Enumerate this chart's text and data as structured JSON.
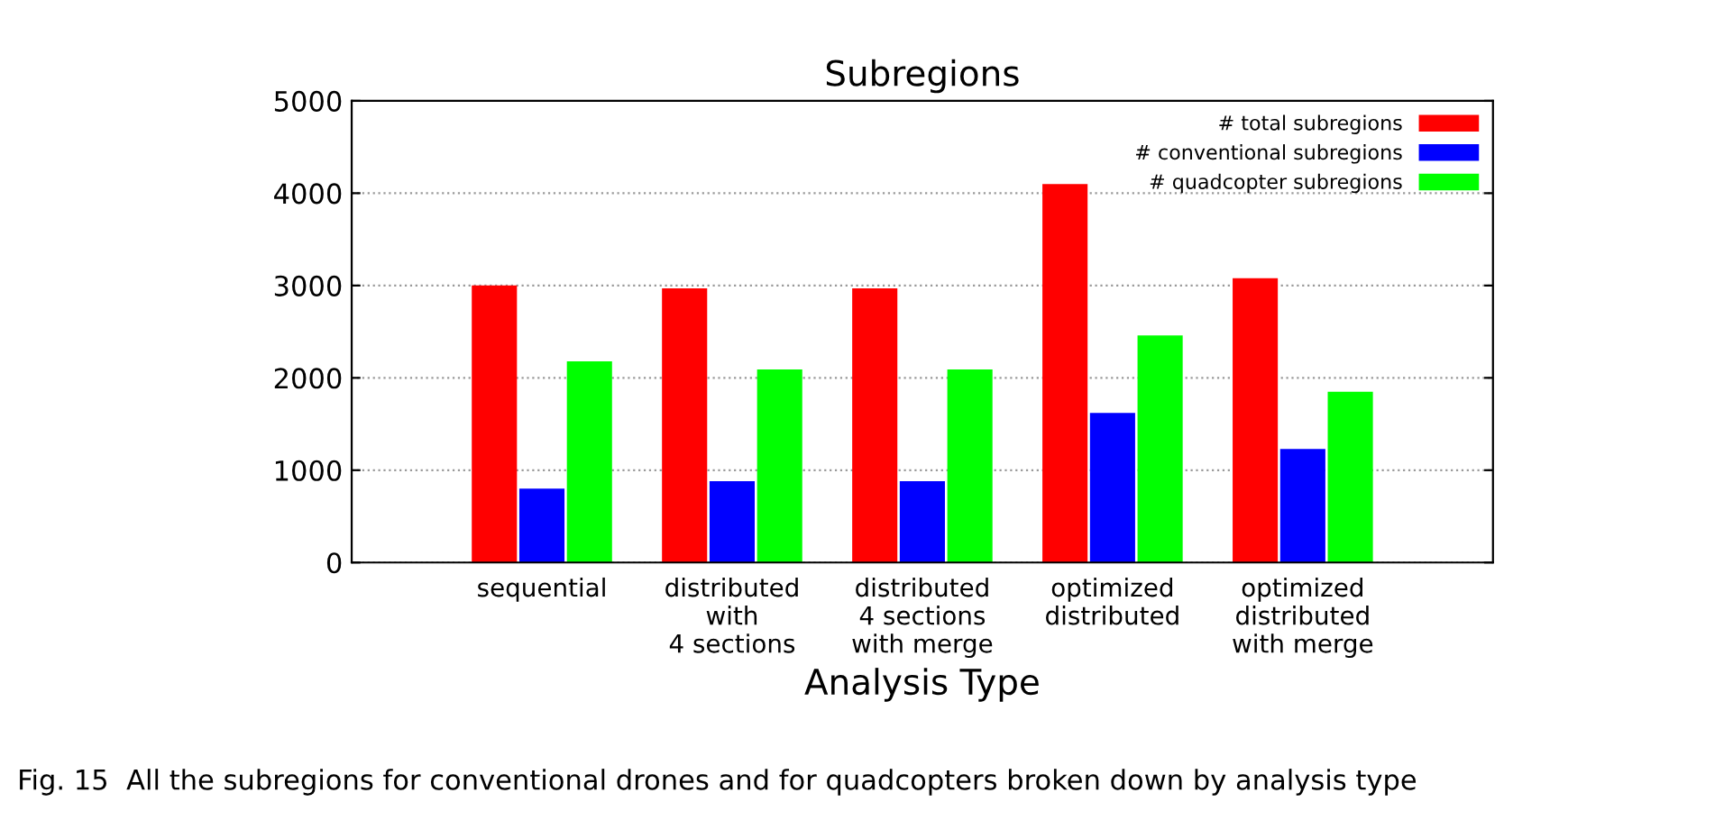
{
  "chart_data": {
    "type": "bar",
    "title": "Subregions",
    "xlabel": "Analysis Type",
    "categories": [
      "sequential",
      "distributed\nwith\n4 sections",
      "distributed\n4 sections\nwith merge",
      "optimized\ndistributed",
      "optimized\ndistributed\nwith merge"
    ],
    "series": [
      {
        "name": "# total subregions",
        "color": "#ff0000",
        "values": [
          3000,
          2970,
          2970,
          4100,
          3080
        ]
      },
      {
        "name": "# conventional subregions",
        "color": "#0000ff",
        "values": [
          800,
          880,
          880,
          1620,
          1230
        ]
      },
      {
        "name": "# quadcopter subregions",
        "color": "#00ff00",
        "values": [
          2180,
          2090,
          2090,
          2460,
          1850
        ]
      }
    ],
    "ylim": [
      0,
      5000
    ],
    "yticks": [
      0,
      1000,
      2000,
      3000,
      4000,
      5000
    ],
    "grid": "y",
    "legend": "top right",
    "annotations": [
      "Fig. 15  All the subregions for conventional drones and for quadcopters broken down by analysis type"
    ]
  }
}
